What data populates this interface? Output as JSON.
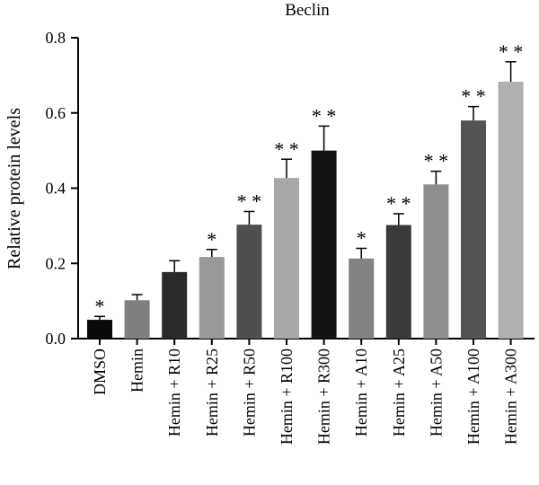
{
  "chart_data": {
    "type": "bar",
    "title": "Beclin",
    "ylabel": "Relative protein levels",
    "xlabel": "",
    "ylim": [
      0,
      0.8
    ],
    "yticks": [
      "0.0",
      "0.2",
      "0.4",
      "0.6",
      "0.8"
    ],
    "grid": false,
    "categories": [
      "DMSO",
      "Hemin",
      "Hemin + R10",
      "Hemin + R25",
      "Hemin + R50",
      "Hemin + R100",
      "Hemin + R300",
      "Hemin + A10",
      "Hemin + A25",
      "Hemin + A50",
      "Hemin + A100",
      "Hemin + A300"
    ],
    "values": [
      0.05,
      0.102,
      0.177,
      0.217,
      0.303,
      0.427,
      0.5,
      0.213,
      0.302,
      0.41,
      0.58,
      0.683
    ],
    "errors": [
      0.009,
      0.015,
      0.03,
      0.02,
      0.035,
      0.05,
      0.065,
      0.027,
      0.03,
      0.035,
      0.037,
      0.053
    ],
    "significance": [
      "*",
      "",
      "",
      "*",
      "**",
      "**",
      "**",
      "*",
      "**",
      "**",
      "**",
      "**"
    ],
    "colors": [
      "#0a0a0a",
      "#7f7f7f",
      "#2a2a2a",
      "#999999",
      "#4f4f4f",
      "#a8a8a8",
      "#121212",
      "#828282",
      "#3a3a3a",
      "#8e8e8e",
      "#545454",
      "#b0b0b0"
    ]
  }
}
